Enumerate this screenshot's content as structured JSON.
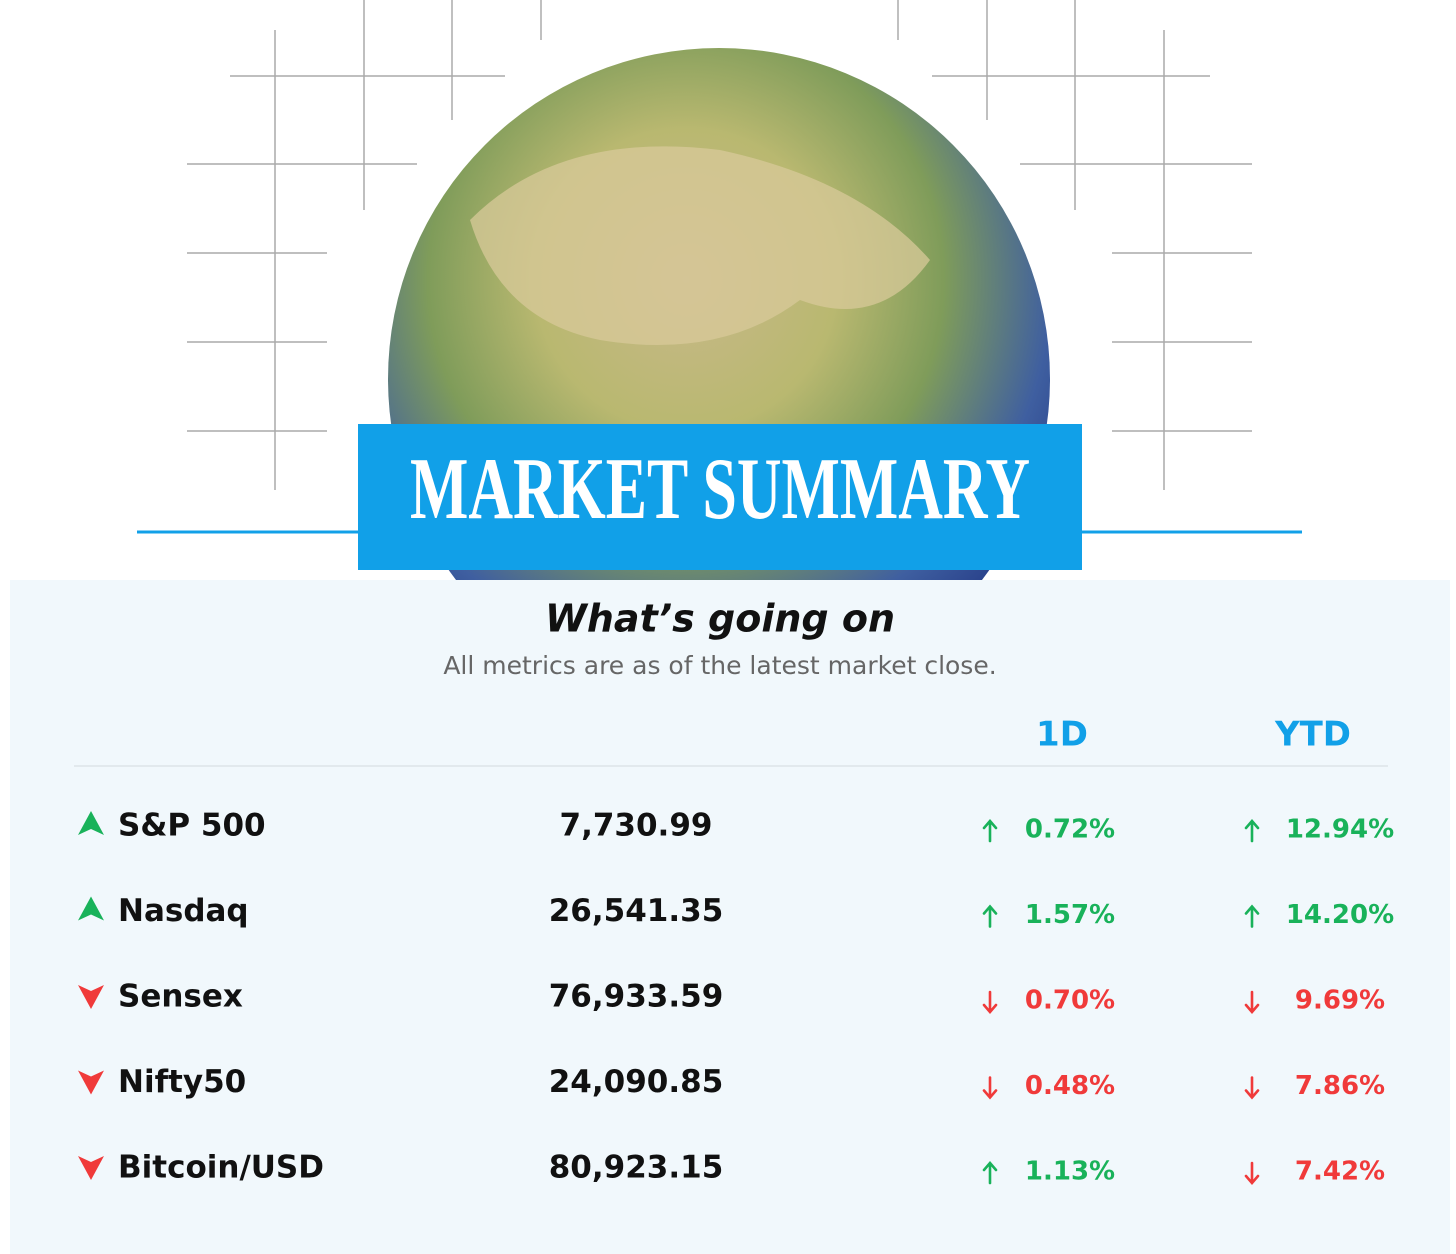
{
  "header": {
    "title": "MARKET SUMMARY",
    "subtitle": "What’s going on",
    "note": "All metrics are as of the latest market close."
  },
  "table": {
    "columns": [
      "1D",
      "YTD"
    ],
    "rows": [
      {
        "name": "S&P 500",
        "trend": "up",
        "value": "7,730.99",
        "d1": {
          "text": "0.72%",
          "trend": "up"
        },
        "ytd": {
          "text": "12.94%",
          "trend": "up"
        }
      },
      {
        "name": "Nasdaq",
        "trend": "up",
        "value": "26,541.35",
        "d1": {
          "text": "1.57%",
          "trend": "up"
        },
        "ytd": {
          "text": "14.20%",
          "trend": "up"
        }
      },
      {
        "name": "Sensex",
        "trend": "down",
        "value": "76,933.59",
        "d1": {
          "text": "0.70%",
          "trend": "down"
        },
        "ytd": {
          "text": "9.69%",
          "trend": "down"
        }
      },
      {
        "name": "Nifty50",
        "trend": "down",
        "value": "24,090.85",
        "d1": {
          "text": "0.48%",
          "trend": "down"
        },
        "ytd": {
          "text": "7.86%",
          "trend": "down"
        }
      },
      {
        "name": "Bitcoin/USD",
        "trend": "down",
        "value": "80,923.15",
        "d1": {
          "text": "1.13%",
          "trend": "up"
        },
        "ytd": {
          "text": "7.42%",
          "trend": "down"
        }
      }
    ]
  }
}
